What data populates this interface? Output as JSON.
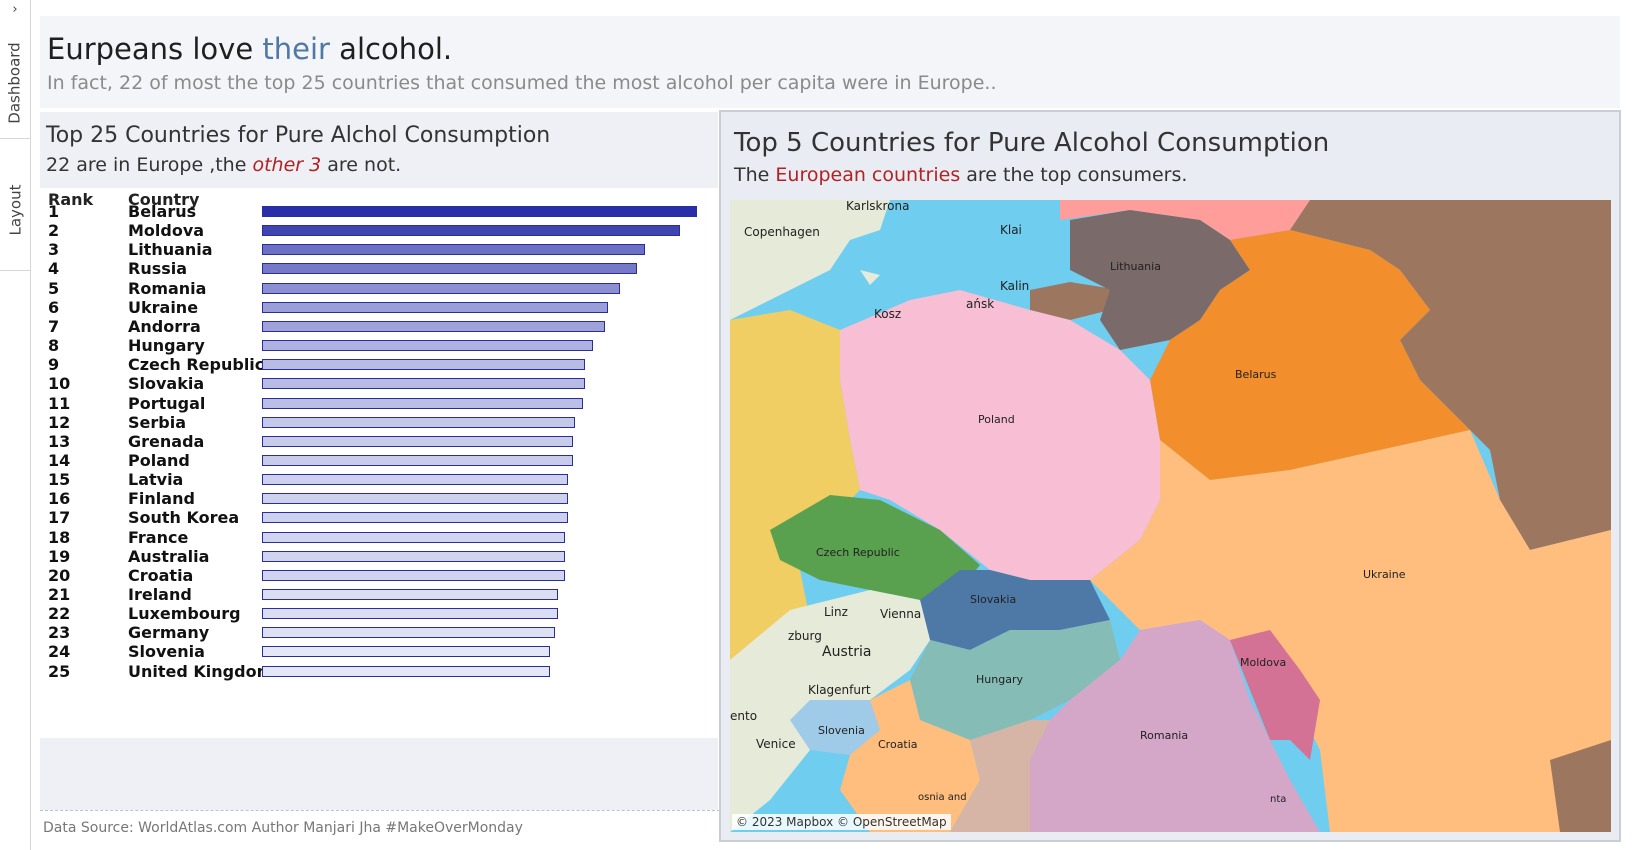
{
  "side_rail": {
    "tabs": [
      "Dashboard",
      "Layout"
    ],
    "expand_glyph": "›"
  },
  "header": {
    "title_part1": "Eurpeans love ",
    "title_highlight": "their",
    "title_part2": " alcohol.",
    "subtitle": "In fact, 22 of most the top 25 countries that consumed the most alcohol per capita were in Europe.."
  },
  "left_panel": {
    "title": "Top 25 Countries for Pure Alchol Consumption",
    "subtitle_part1": "22 are in Europe ,the ",
    "subtitle_em": "other 3",
    "subtitle_part2": " are not."
  },
  "right_panel": {
    "title": "Top 5 Countries for Pure Alcohol Consumption",
    "subtitle_part1": "The ",
    "subtitle_red": "European countries",
    "subtitle_part2": " are the top consumers."
  },
  "map": {
    "country_labels": [
      "Lithuania",
      "Belarus",
      "Poland",
      "Czech Republic",
      "Slovakia",
      "Ukraine",
      "Hungary",
      "Moldova",
      "Romania",
      "Slovenia",
      "Croatia",
      "Austria"
    ],
    "city_labels": [
      "Karlskrona",
      "Copenhagen",
      "Klai",
      "Kalin",
      "Kosz",
      "ańsk",
      "Linz",
      "Vienna",
      "zburg",
      "Klagenfurt",
      "ento",
      "Venice",
      "osnia and",
      "nta"
    ],
    "attribution": "© 2023 Mapbox © OpenStreetMap",
    "colors": {
      "Lithuania": "#7a6a6a",
      "Belarus": "#f28e2b",
      "Poland": "#f7bed4",
      "Czech Republic": "#59a14f",
      "Slovakia": "#4e79a7",
      "Ukraine": "#ffbe7d",
      "Hungary": "#86bcb6",
      "Moldova": "#d37295",
      "Romania": "#d4a6c8",
      "Russia": "#9d7660",
      "Latvia": "#ff9d9a",
      "Kaliningrad": "#9d7660",
      "Germany": "#f1ce63",
      "Slovenia": "#a0cbe8",
      "Croatia": "#ffbe7d",
      "Serbia": "#d7b5a6",
      "water": "#6fcdf0"
    }
  },
  "footer": {
    "source": "Data Source: WorldAtlas.com Author Manjari Jha  #MakeOverMonday"
  },
  "chart_data": {
    "type": "bar",
    "orientation": "horizontal",
    "column_headers": [
      "Rank",
      "Country"
    ],
    "categories": [
      "Belarus",
      "Moldova",
      "Lithuania",
      "Russia",
      "Romania",
      "Ukraine",
      "Andorra",
      "Hungary",
      "Czech Republic",
      "Slovakia",
      "Portugal",
      "Serbia",
      "Grenada",
      "Poland",
      "Latvia",
      "Finland",
      "South Korea",
      "France",
      "Australia",
      "Croatia",
      "Ireland",
      "Luxembourg",
      "Germany",
      "Slovenia",
      "United Kingdom"
    ],
    "ranks": [
      1,
      2,
      3,
      4,
      5,
      6,
      7,
      8,
      9,
      10,
      11,
      12,
      13,
      14,
      15,
      16,
      17,
      18,
      19,
      20,
      21,
      22,
      23,
      24,
      25
    ],
    "values": [
      17.5,
      16.8,
      15.4,
      15.1,
      14.4,
      13.9,
      13.8,
      13.3,
      13.0,
      13.0,
      12.9,
      12.6,
      12.5,
      12.5,
      12.3,
      12.3,
      12.3,
      12.2,
      12.2,
      12.2,
      11.9,
      11.9,
      11.8,
      11.6,
      11.6
    ],
    "color_scale": {
      "low": "#e4e7f6",
      "high": "#2a2ea8"
    },
    "xlim": [
      0,
      17.5
    ],
    "grid": false
  }
}
